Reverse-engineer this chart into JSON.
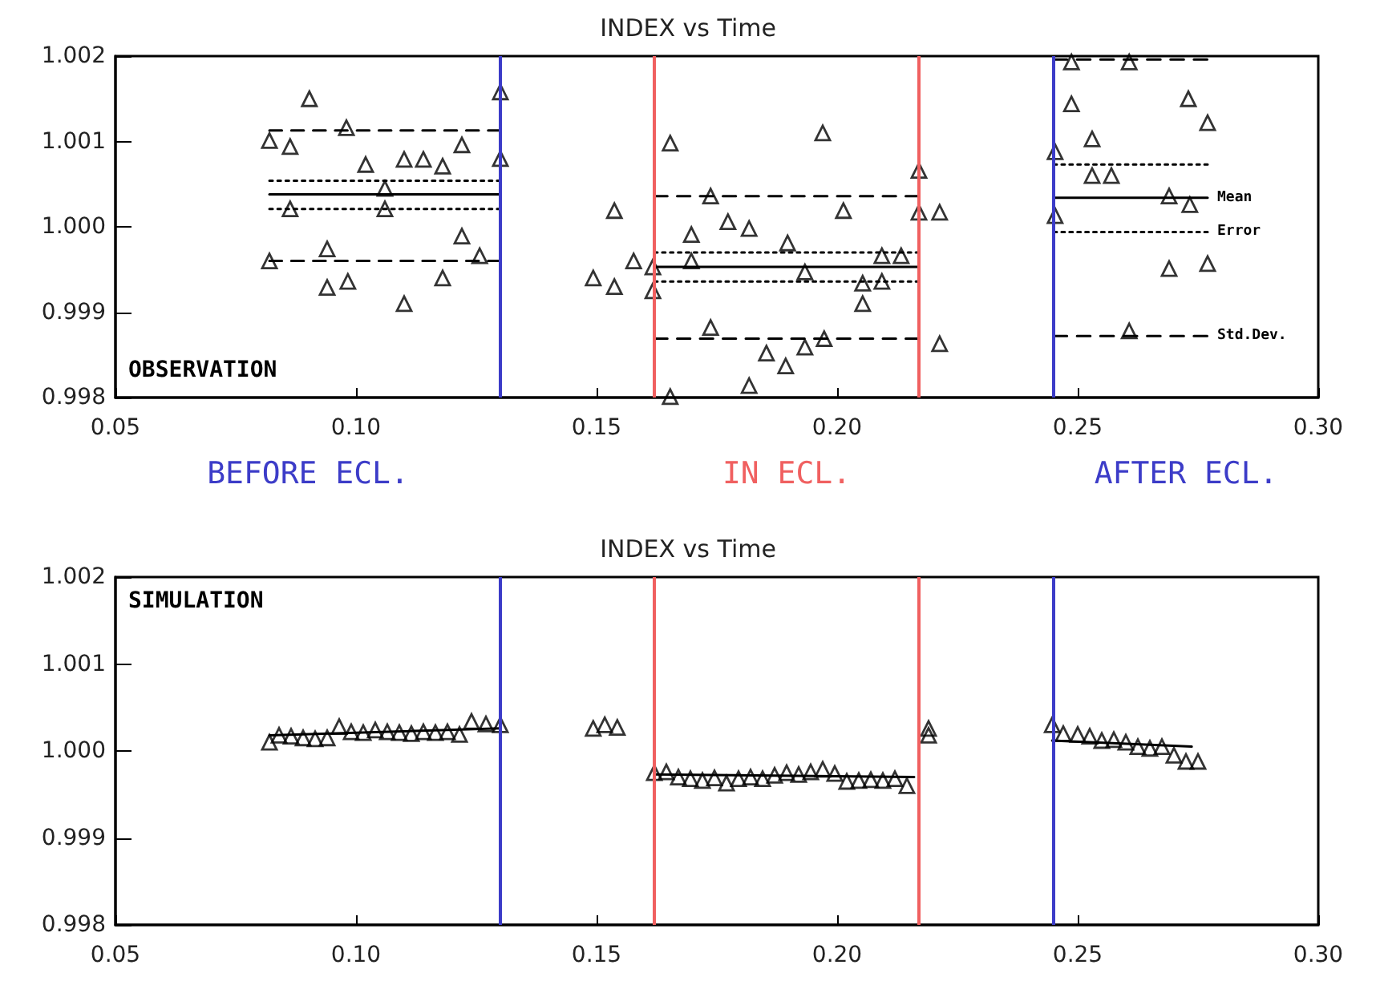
{
  "chart_data": [
    {
      "type": "scatter",
      "title": "INDEX vs Time",
      "grid": false,
      "xlim": [
        0.05,
        0.3
      ],
      "xticks": [
        {
          "value": 0.05,
          "label": "0.05"
        },
        {
          "value": 0.1,
          "label": "0.10"
        },
        {
          "value": 0.15,
          "label": "0.15"
        },
        {
          "value": 0.2,
          "label": "0.20"
        },
        {
          "value": 0.25,
          "label": "0.25"
        },
        {
          "value": 0.3,
          "label": "0.30"
        }
      ],
      "ylim": [
        0.998,
        1.002
      ],
      "yticks": [
        {
          "value": 0.998,
          "label": "0.998"
        },
        {
          "value": 0.999,
          "label": "0.999"
        },
        {
          "value": 1,
          "label": "1.000"
        },
        {
          "value": 1.001,
          "label": "1.001"
        },
        {
          "value": 1.002,
          "label": "1.002"
        }
      ],
      "ref_lines": [
        {
          "axis": "x",
          "value": 0.13,
          "color": "#3c3cc8"
        },
        {
          "axis": "x",
          "value": 0.162,
          "color": "#f06060"
        },
        {
          "axis": "x",
          "value": 0.217,
          "color": "#f06060"
        },
        {
          "axis": "x",
          "value": 0.245,
          "color": "#3c3cc8"
        }
      ],
      "annotations": [
        "OBSERVATION",
        "BEFORE ECL.",
        "IN ECL.",
        "AFTER ECL.",
        "Mean",
        "Error",
        "Std.Dev."
      ],
      "series": [
        {
          "marker": "triangle",
          "color": "#000000",
          "x": [
            0.0903,
            0.082,
            0.0863,
            0.098,
            0.102,
            0.11,
            0.114,
            0.118,
            0.122,
            0.13,
            0.13,
            0.106,
            0.0863,
            0.106,
            0.082,
            0.094,
            0.094,
            0.0983,
            0.122,
            0.1257,
            0.118,
            0.11,
            0.1653,
            0.197,
            0.217,
            0.1537,
            0.1737,
            0.1773,
            0.1817,
            0.1697,
            0.1897,
            0.2013,
            0.217,
            0.2213,
            0.1577,
            0.1617,
            0.1697,
            0.1493,
            0.1537,
            0.1617,
            0.1933,
            0.2093,
            0.2133,
            0.2053,
            0.2093,
            0.2053,
            0.1737,
            0.1853,
            0.1893,
            0.1933,
            0.1973,
            0.2213,
            0.1817,
            0.1653,
            0.2487,
            0.2607,
            0.2487,
            0.273,
            0.277,
            0.253,
            0.2453,
            0.253,
            0.257,
            0.269,
            0.2733,
            0.2453,
            0.269,
            0.277,
            0.2607
          ],
          "values": [
            1.0015,
            1.00101,
            1.00094,
            1.00116,
            1.00073,
            1.00079,
            1.00079,
            1.00071,
            1.00096,
            1.00158,
            1.0008,
            1.00045,
            1.00021,
            1.00021,
            0.9996,
            0.99974,
            0.99929,
            0.99936,
            0.99989,
            0.99966,
            0.9994,
            0.9991,
            1.00098,
            1.0011,
            1.00066,
            1.00019,
            1.00036,
            1.00006,
            0.99998,
            0.99991,
            0.99981,
            1.00019,
            1.00017,
            1.00017,
            0.9996,
            0.99953,
            0.9996,
            0.9994,
            0.9993,
            0.99925,
            0.99947,
            0.99966,
            0.99966,
            0.99934,
            0.99936,
            0.9991,
            0.99882,
            0.99852,
            0.99837,
            0.99859,
            0.99869,
            0.99863,
            0.99814,
            0.99801,
            1.00193,
            1.00193,
            1.00144,
            1.0015,
            1.00122,
            1.00103,
            1.00088,
            1.0006,
            1.0006,
            1.00036,
            1.00026,
            1.00013,
            0.99951,
            0.99957,
            0.99878
          ]
        },
        {
          "type": "line",
          "color": "#000000",
          "line_style": "solid",
          "x": [
            0.082,
            0.13
          ],
          "values": [
            1.00038,
            1.00038
          ]
        },
        {
          "type": "line",
          "color": "#000000",
          "line_style": "dotted",
          "x": [
            0.082,
            0.13
          ],
          "values": [
            1.00054,
            1.00054
          ]
        },
        {
          "type": "line",
          "color": "#000000",
          "line_style": "dotted",
          "x": [
            0.082,
            0.13
          ],
          "values": [
            1.00021,
            1.00021
          ]
        },
        {
          "type": "line",
          "color": "#000000",
          "line_style": "dashed",
          "x": [
            0.082,
            0.13
          ],
          "values": [
            1.00113,
            1.00113
          ]
        },
        {
          "type": "line",
          "color": "#000000",
          "line_style": "dashed",
          "x": [
            0.082,
            0.13
          ],
          "values": [
            0.9996,
            0.9996
          ]
        },
        {
          "type": "line",
          "color": "#000000",
          "line_style": "solid",
          "x": [
            0.162,
            0.217
          ],
          "values": [
            0.99953,
            0.99953
          ]
        },
        {
          "type": "line",
          "color": "#000000",
          "line_style": "dotted",
          "x": [
            0.162,
            0.217
          ],
          "values": [
            0.9997,
            0.9997
          ]
        },
        {
          "type": "line",
          "color": "#000000",
          "line_style": "dotted",
          "x": [
            0.162,
            0.217
          ],
          "values": [
            0.99936,
            0.99936
          ]
        },
        {
          "type": "line",
          "color": "#000000",
          "line_style": "dashed",
          "x": [
            0.162,
            0.217
          ],
          "values": [
            1.00036,
            1.00036
          ]
        },
        {
          "type": "line",
          "color": "#000000",
          "line_style": "dashed",
          "x": [
            0.162,
            0.217
          ],
          "values": [
            0.99869,
            0.99869
          ]
        },
        {
          "type": "line",
          "color": "#000000",
          "line_style": "solid",
          "x": [
            0.245,
            0.277
          ],
          "values": [
            1.00034,
            1.00034
          ]
        },
        {
          "type": "line",
          "color": "#000000",
          "line_style": "dotted",
          "x": [
            0.245,
            0.277
          ],
          "values": [
            1.00073,
            1.00073
          ]
        },
        {
          "type": "line",
          "color": "#000000",
          "line_style": "dotted",
          "x": [
            0.245,
            0.277
          ],
          "values": [
            0.99994,
            0.99994
          ]
        },
        {
          "type": "line",
          "color": "#000000",
          "line_style": "dashed",
          "x": [
            0.245,
            0.277
          ],
          "values": [
            1.00196,
            1.00196
          ]
        },
        {
          "type": "line",
          "color": "#000000",
          "line_style": "dashed",
          "x": [
            0.245,
            0.277
          ],
          "values": [
            0.99872,
            0.99872
          ]
        }
      ]
    },
    {
      "type": "scatter",
      "title": "INDEX vs Time",
      "grid": false,
      "xlim": [
        0.05,
        0.3
      ],
      "xticks": [
        {
          "value": 0.05,
          "label": "0.05"
        },
        {
          "value": 0.1,
          "label": "0.10"
        },
        {
          "value": 0.15,
          "label": "0.15"
        },
        {
          "value": 0.2,
          "label": "0.20"
        },
        {
          "value": 0.25,
          "label": "0.25"
        },
        {
          "value": 0.3,
          "label": "0.30"
        }
      ],
      "ylim": [
        0.998,
        1.002
      ],
      "yticks": [
        {
          "value": 0.998,
          "label": "0.998"
        },
        {
          "value": 0.999,
          "label": "0.999"
        },
        {
          "value": 1,
          "label": "1.000"
        },
        {
          "value": 1.001,
          "label": "1.001"
        },
        {
          "value": 1.002,
          "label": "1.002"
        }
      ],
      "ref_lines": [
        {
          "axis": "x",
          "value": 0.13,
          "color": "#3c3cc8"
        },
        {
          "axis": "x",
          "value": 0.162,
          "color": "#f06060"
        },
        {
          "axis": "x",
          "value": 0.217,
          "color": "#f06060"
        },
        {
          "axis": "x",
          "value": 0.245,
          "color": "#3c3cc8"
        }
      ],
      "annotations": [
        "SIMULATION"
      ],
      "series": [
        {
          "marker": "triangle",
          "color": "#000000",
          "x": [
            0.082,
            0.084,
            0.0865,
            0.089,
            0.0915,
            0.094,
            0.0965,
            0.099,
            0.1015,
            0.104,
            0.1065,
            0.109,
            0.1115,
            0.114,
            0.1165,
            0.119,
            0.1215,
            0.124,
            0.127,
            0.13,
            0.1493,
            0.1517,
            0.1543,
            0.162,
            0.1645,
            0.167,
            0.1695,
            0.172,
            0.1745,
            0.177,
            0.1795,
            0.182,
            0.1845,
            0.187,
            0.1895,
            0.192,
            0.1945,
            0.197,
            0.1995,
            0.202,
            0.2045,
            0.207,
            0.2095,
            0.212,
            0.2145,
            0.219,
            0.219,
            0.2447,
            0.247,
            0.25,
            0.2525,
            0.255,
            0.2575,
            0.26,
            0.2625,
            0.265,
            0.2675,
            0.27,
            0.2725,
            0.275
          ],
          "values": [
            1.0001,
            1.00018,
            1.00017,
            1.00015,
            1.00014,
            1.00015,
            1.00028,
            1.00022,
            1.00021,
            1.00024,
            1.00022,
            1.00021,
            1.0002,
            1.00022,
            1.00021,
            1.00022,
            1.00019,
            1.00034,
            1.00031,
            1.0003,
            1.00026,
            1.0003,
            1.00027,
            0.99975,
            0.99976,
            0.9997,
            0.99968,
            0.99966,
            0.99969,
            0.99963,
            0.99968,
            0.9997,
            0.99968,
            0.99972,
            0.99975,
            0.99973,
            0.99976,
            0.99979,
            0.99974,
            0.99965,
            0.99966,
            0.99967,
            0.99966,
            0.99968,
            0.9996,
            1.00018,
            1.00026,
            1.0003,
            1.0002,
            1.00019,
            1.00017,
            1.00012,
            1.00013,
            1.0001,
            1.00005,
            1.00003,
            1.00005,
            0.99995,
            0.99988,
            0.99988
          ]
        },
        {
          "type": "line",
          "color": "#000000",
          "line_style": "solid",
          "x": [
            0.082,
            0.13
          ],
          "values": [
            1.00018,
            1.00026
          ]
        },
        {
          "type": "line",
          "color": "#000000",
          "line_style": "solid",
          "x": [
            0.162,
            0.216
          ],
          "values": [
            0.99973,
            0.9997
          ]
        },
        {
          "type": "line",
          "color": "#000000",
          "line_style": "solid",
          "x": [
            0.2447,
            0.2737
          ],
          "values": [
            1.00012,
            1.00005
          ]
        }
      ]
    }
  ]
}
